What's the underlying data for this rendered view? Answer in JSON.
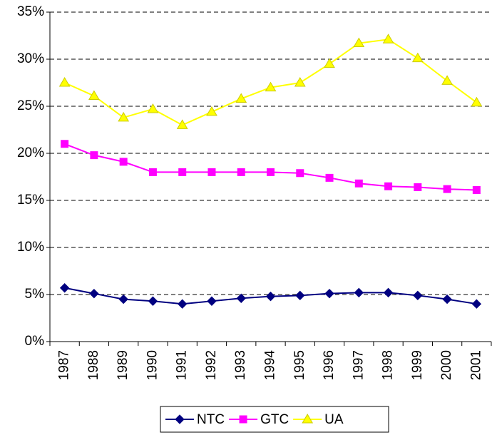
{
  "chart_data": {
    "type": "line",
    "categories": [
      "1987",
      "1988",
      "1989",
      "1990",
      "1991",
      "1992",
      "1993",
      "1994",
      "1995",
      "1996",
      "1997",
      "1998",
      "1999",
      "2000",
      "2001"
    ],
    "series": [
      {
        "name": "NTC",
        "color": "#000080",
        "marker": "diamond",
        "values": [
          5.7,
          5.1,
          4.5,
          4.3,
          4.0,
          4.3,
          4.6,
          4.8,
          4.9,
          5.1,
          5.2,
          5.2,
          4.9,
          4.5,
          4.0
        ]
      },
      {
        "name": "GTC",
        "color": "#ff00ff",
        "marker": "square",
        "values": [
          21.0,
          19.8,
          19.1,
          18.0,
          18.0,
          18.0,
          18.0,
          18.0,
          17.9,
          17.4,
          16.8,
          16.5,
          16.4,
          16.2,
          16.1
        ]
      },
      {
        "name": "UA",
        "color": "#ffff00",
        "marker": "triangle",
        "values": [
          27.5,
          26.1,
          23.8,
          24.7,
          23.0,
          24.4,
          25.8,
          27.0,
          27.5,
          29.5,
          31.7,
          32.1,
          30.1,
          27.7,
          25.4
        ]
      }
    ],
    "ylim": [
      0,
      35
    ],
    "yticks": [
      {
        "value": 0,
        "label": "0%"
      },
      {
        "value": 5,
        "label": "5%"
      },
      {
        "value": 10,
        "label": "10%"
      },
      {
        "value": 15,
        "label": "15%"
      },
      {
        "value": 20,
        "label": "20%"
      },
      {
        "value": 25,
        "label": "25%"
      },
      {
        "value": 30,
        "label": "30%"
      },
      {
        "value": 35,
        "label": "35%"
      }
    ],
    "grid": true,
    "legend": "bottom"
  }
}
